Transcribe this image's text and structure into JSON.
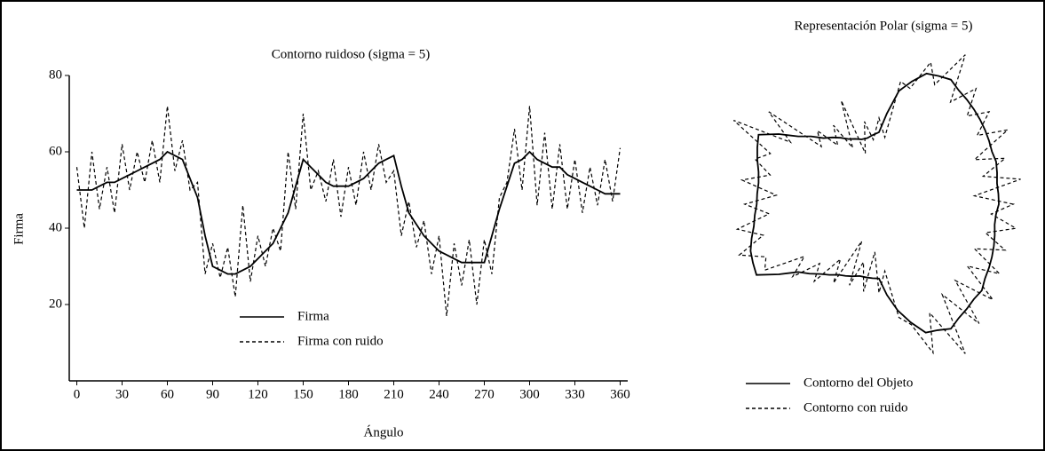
{
  "chart_data": [
    {
      "type": "line",
      "title": "Contorno ruidoso (sigma = 5)",
      "x_label": "Ángulo",
      "y_label": "Firma",
      "x": [
        0,
        5,
        10,
        15,
        20,
        25,
        30,
        35,
        40,
        45,
        50,
        55,
        60,
        65,
        70,
        75,
        80,
        85,
        90,
        95,
        100,
        105,
        110,
        115,
        120,
        125,
        130,
        135,
        140,
        145,
        150,
        155,
        160,
        165,
        170,
        175,
        180,
        185,
        190,
        195,
        200,
        205,
        210,
        215,
        220,
        225,
        230,
        235,
        240,
        245,
        250,
        255,
        260,
        265,
        270,
        275,
        280,
        285,
        290,
        295,
        300,
        305,
        310,
        315,
        320,
        325,
        330,
        335,
        340,
        345,
        350,
        355,
        360
      ],
      "series": [
        {
          "name": "Firma",
          "color": "#000000",
          "line_style": "solid",
          "values": [
            50,
            50,
            50,
            51,
            52,
            52,
            53,
            54,
            55,
            56,
            57,
            58,
            60,
            59,
            58,
            53,
            48,
            38,
            30,
            29,
            28,
            28,
            29,
            30,
            32,
            34,
            36,
            40,
            44,
            51,
            58,
            56,
            54,
            52,
            51,
            51,
            51,
            52,
            53,
            55,
            57,
            58,
            59,
            51,
            44,
            41,
            38,
            36,
            34,
            33,
            32,
            31,
            31,
            31,
            31,
            38,
            45,
            51,
            57,
            58,
            60,
            58,
            57,
            56,
            56,
            54,
            53,
            52,
            51,
            50,
            49,
            49,
            49
          ]
        },
        {
          "name": "Firma con ruido",
          "color": "#000000",
          "line_style": "dashed",
          "values": [
            56,
            40,
            60,
            45,
            56,
            44,
            62,
            50,
            60,
            52,
            63,
            52,
            72,
            55,
            63,
            50,
            52,
            28,
            36,
            27,
            35,
            22,
            46,
            26,
            38,
            30,
            40,
            34,
            60,
            45,
            70,
            50,
            55,
            47,
            58,
            43,
            56,
            46,
            60,
            50,
            62,
            52,
            55,
            38,
            47,
            35,
            42,
            28,
            38,
            17,
            36,
            25,
            37,
            20,
            37,
            28,
            48,
            52,
            66,
            50,
            72,
            46,
            65,
            45,
            62,
            45,
            58,
            44,
            56,
            46,
            58,
            47,
            61
          ]
        }
      ],
      "xlim": [
        -5,
        365
      ],
      "xticks": [
        0,
        30,
        60,
        90,
        120,
        150,
        180,
        210,
        240,
        270,
        300,
        330,
        360
      ],
      "ylim": [
        0,
        80
      ],
      "yticks": [
        20,
        40,
        60,
        80
      ],
      "legend": "lower center"
    },
    {
      "type": "polar",
      "title": "Representación Polar (sigma = 5)",
      "theta": [
        0,
        5,
        10,
        15,
        20,
        25,
        30,
        35,
        40,
        45,
        50,
        55,
        60,
        65,
        70,
        75,
        80,
        85,
        90,
        95,
        100,
        105,
        110,
        115,
        120,
        125,
        130,
        135,
        140,
        145,
        150,
        155,
        160,
        165,
        170,
        175,
        180,
        185,
        190,
        195,
        200,
        205,
        210,
        215,
        220,
        225,
        230,
        235,
        240,
        245,
        250,
        255,
        260,
        265,
        270,
        275,
        280,
        285,
        290,
        295,
        300,
        305,
        310,
        315,
        320,
        325,
        330,
        335,
        340,
        345,
        350,
        355
      ],
      "series": [
        {
          "name": "Contorno del Objeto",
          "color": "#000000",
          "line_style": "solid",
          "values": [
            50,
            50,
            50,
            51,
            52,
            52,
            53,
            54,
            55,
            56,
            57,
            58,
            60,
            59,
            58,
            53,
            48,
            38,
            30,
            29,
            28,
            28,
            29,
            30,
            32,
            34,
            36,
            40,
            44,
            51,
            58,
            56,
            54,
            52,
            51,
            51,
            51,
            52,
            53,
            55,
            57,
            58,
            59,
            51,
            44,
            41,
            38,
            36,
            34,
            33,
            32,
            31,
            31,
            31,
            31,
            38,
            45,
            51,
            57,
            58,
            60,
            58,
            57,
            56,
            56,
            54,
            53,
            52,
            51,
            50,
            49,
            49
          ]
        },
        {
          "name": "Contorno con ruido",
          "color": "#000000",
          "line_style": "dashed",
          "values": [
            56,
            40,
            60,
            45,
            56,
            44,
            62,
            50,
            60,
            52,
            63,
            52,
            72,
            55,
            63,
            50,
            52,
            28,
            36,
            27,
            35,
            22,
            46,
            26,
            38,
            30,
            40,
            34,
            60,
            45,
            70,
            50,
            55,
            47,
            58,
            43,
            56,
            46,
            60,
            50,
            62,
            52,
            55,
            38,
            47,
            35,
            42,
            28,
            38,
            17,
            36,
            25,
            37,
            20,
            37,
            28,
            48,
            52,
            66,
            50,
            72,
            46,
            65,
            45,
            62,
            45,
            58,
            44,
            56,
            46,
            58,
            47
          ]
        }
      ],
      "legend": "lower center"
    }
  ]
}
